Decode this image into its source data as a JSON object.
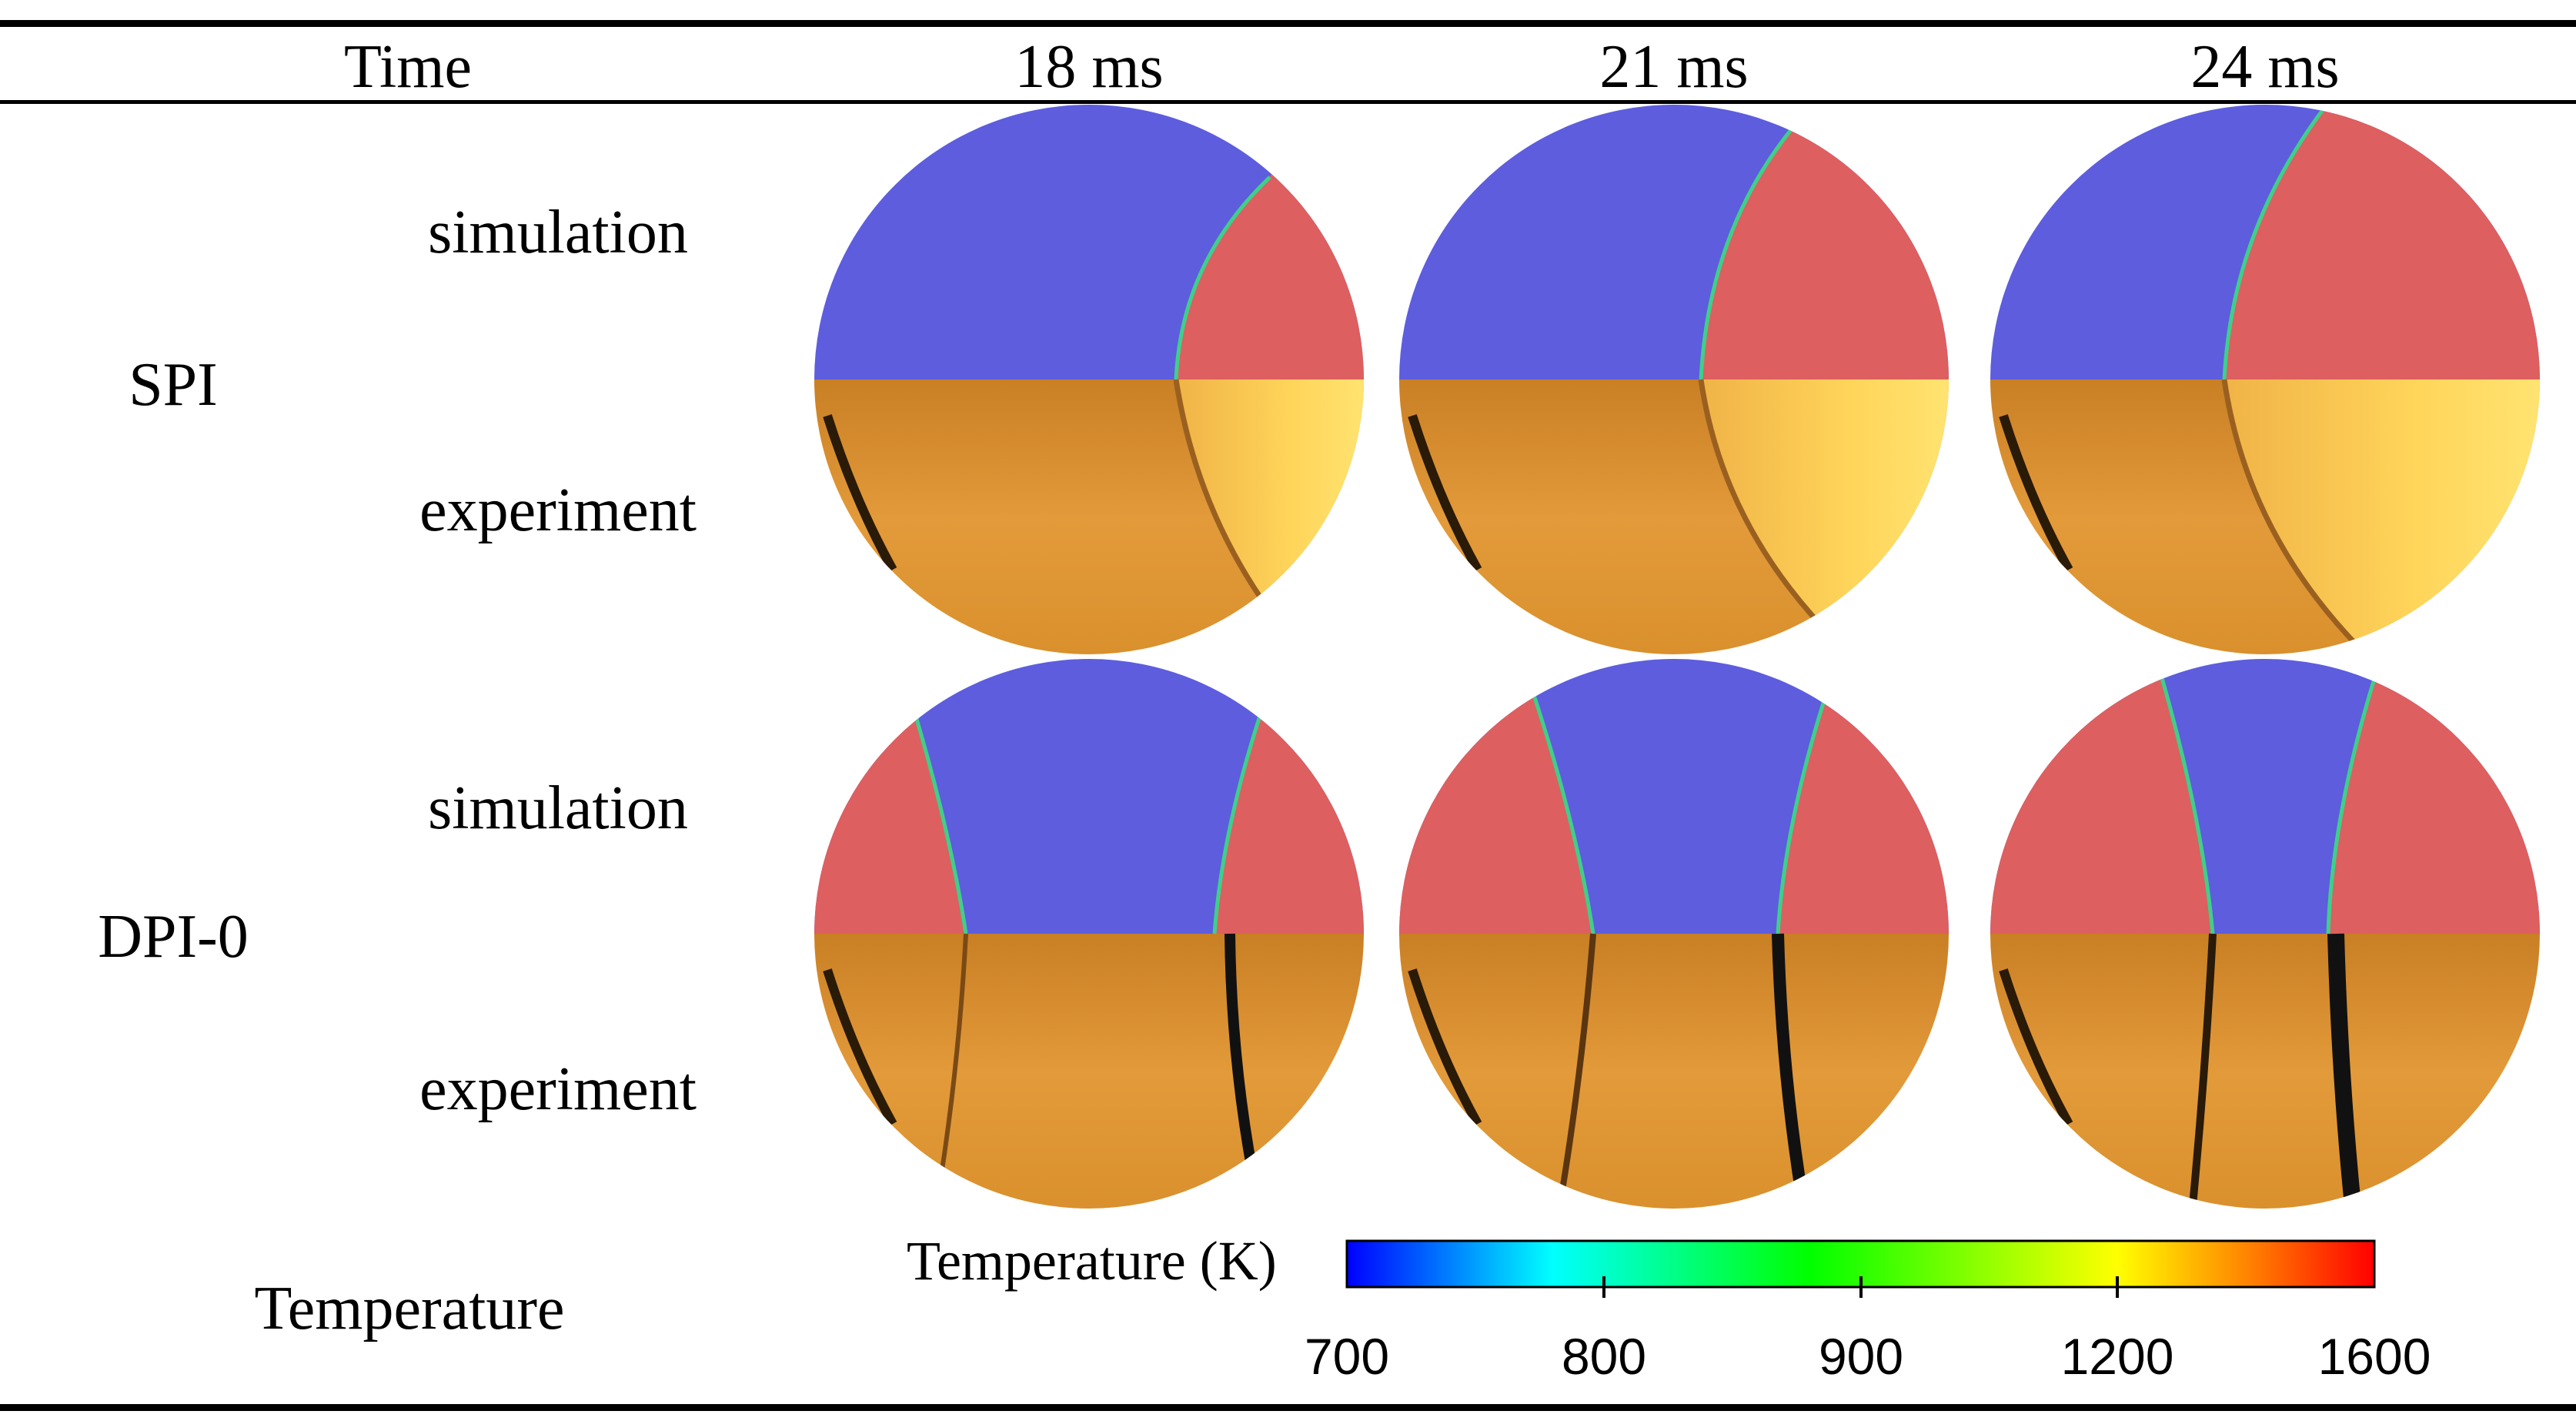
{
  "table": {
    "header": {
      "time_label": "Time",
      "columns": [
        "18 ms",
        "21 ms",
        "24 ms"
      ]
    },
    "groups": [
      {
        "name": "SPI",
        "rows": [
          "simulation",
          "experiment"
        ]
      },
      {
        "name": "DPI-0",
        "rows": [
          "simulation",
          "experiment"
        ]
      }
    ],
    "temperature_row_label": "Temperature"
  },
  "colorbar": {
    "title": "Temperature (K)",
    "ticks": [
      "700",
      "800",
      "900",
      "1200",
      "1600"
    ],
    "colors": [
      "#0000ff",
      "#00ffff",
      "#00ff00",
      "#ffff00",
      "#ff8000",
      "#ff0000"
    ]
  },
  "colors": {
    "burned": "#dd5f5f",
    "unburned": "#5d5dde",
    "schlieren_base": "#e09530",
    "schlieren_light": "#ffd84e"
  }
}
